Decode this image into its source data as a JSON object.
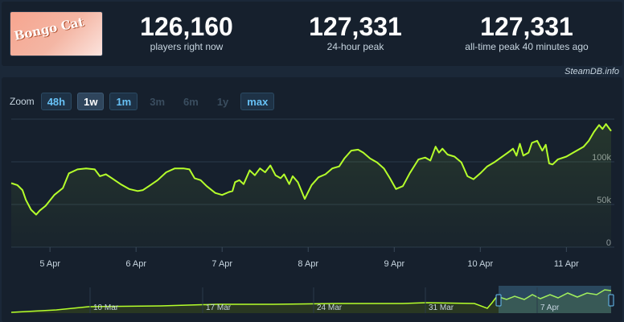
{
  "game": {
    "logo_text": "Bongo Cat"
  },
  "stats": [
    {
      "value": "126,160",
      "label": "players right now"
    },
    {
      "value": "127,331",
      "label": "24-hour peak"
    },
    {
      "value": "127,331",
      "label": "all-time peak 40 minutes ago"
    }
  ],
  "source": "SteamDB.info",
  "zoom": {
    "label": "Zoom",
    "options": [
      {
        "label": "48h",
        "state": "normal"
      },
      {
        "label": "1w",
        "state": "active"
      },
      {
        "label": "1m",
        "state": "normal"
      },
      {
        "label": "3m",
        "state": "disabled"
      },
      {
        "label": "6m",
        "state": "disabled"
      },
      {
        "label": "1y",
        "state": "disabled"
      },
      {
        "label": "max",
        "state": "normal"
      }
    ]
  },
  "colors": {
    "line": "#b5ff2b",
    "accent": "#67c1f5",
    "background": "#1b2838"
  },
  "chart_data": {
    "type": "line",
    "xlabels": [
      "5 Apr",
      "6 Apr",
      "7 Apr",
      "8 Apr",
      "9 Apr",
      "10 Apr",
      "11 Apr"
    ],
    "ylabels": [
      "0",
      "50k",
      "100k"
    ],
    "ylim": [
      0,
      130000
    ],
    "x_range_days": [
      4.55,
      11.52
    ],
    "series": [
      {
        "values": [
          [
            4.55,
            65000
          ],
          [
            4.62,
            63000
          ],
          [
            4.68,
            58000
          ],
          [
            4.72,
            48000
          ],
          [
            4.78,
            38000
          ],
          [
            4.84,
            33000
          ],
          [
            4.88,
            37000
          ],
          [
            4.95,
            42000
          ],
          [
            5.05,
            53000
          ],
          [
            5.15,
            60000
          ],
          [
            5.22,
            75000
          ],
          [
            5.32,
            79000
          ],
          [
            5.42,
            80000
          ],
          [
            5.52,
            79000
          ],
          [
            5.58,
            72000
          ],
          [
            5.65,
            74000
          ],
          [
            5.72,
            70000
          ],
          [
            5.82,
            64000
          ],
          [
            5.92,
            59000
          ],
          [
            6.02,
            57000
          ],
          [
            6.08,
            58000
          ],
          [
            6.15,
            62000
          ],
          [
            6.25,
            68000
          ],
          [
            6.35,
            76000
          ],
          [
            6.45,
            80000
          ],
          [
            6.55,
            80000
          ],
          [
            6.62,
            79000
          ],
          [
            6.68,
            70000
          ],
          [
            6.75,
            68000
          ],
          [
            6.82,
            62000
          ],
          [
            6.92,
            55000
          ],
          [
            7.0,
            53000
          ],
          [
            7.08,
            56000
          ],
          [
            7.12,
            57000
          ],
          [
            7.15,
            66000
          ],
          [
            7.2,
            68000
          ],
          [
            7.25,
            64000
          ],
          [
            7.32,
            78000
          ],
          [
            7.38,
            73000
          ],
          [
            7.44,
            80000
          ],
          [
            7.5,
            76000
          ],
          [
            7.56,
            83000
          ],
          [
            7.62,
            73000
          ],
          [
            7.68,
            70000
          ],
          [
            7.72,
            74000
          ],
          [
            7.78,
            64000
          ],
          [
            7.82,
            72000
          ],
          [
            7.88,
            66000
          ],
          [
            7.96,
            49000
          ],
          [
            8.04,
            63000
          ],
          [
            8.12,
            71000
          ],
          [
            8.2,
            74000
          ],
          [
            8.28,
            80000
          ],
          [
            8.36,
            82000
          ],
          [
            8.42,
            90000
          ],
          [
            8.5,
            98000
          ],
          [
            8.58,
            99000
          ],
          [
            8.64,
            96000
          ],
          [
            8.72,
            90000
          ],
          [
            8.8,
            86000
          ],
          [
            8.88,
            80000
          ],
          [
            8.95,
            70000
          ],
          [
            9.02,
            59000
          ],
          [
            9.1,
            62000
          ],
          [
            9.18,
            75000
          ],
          [
            9.28,
            89000
          ],
          [
            9.36,
            91000
          ],
          [
            9.42,
            88000
          ],
          [
            9.48,
            102000
          ],
          [
            9.52,
            96000
          ],
          [
            9.56,
            100000
          ],
          [
            9.62,
            94000
          ],
          [
            9.7,
            92000
          ],
          [
            9.78,
            86000
          ],
          [
            9.85,
            72000
          ],
          [
            9.92,
            69000
          ],
          [
            10.0,
            75000
          ],
          [
            10.08,
            82000
          ],
          [
            10.16,
            86000
          ],
          [
            10.24,
            91000
          ],
          [
            10.32,
            96000
          ],
          [
            10.38,
            100000
          ],
          [
            10.42,
            93000
          ],
          [
            10.46,
            105000
          ],
          [
            10.5,
            93000
          ],
          [
            10.56,
            96000
          ],
          [
            10.6,
            106000
          ],
          [
            10.66,
            108000
          ],
          [
            10.72,
            98000
          ],
          [
            10.76,
            104000
          ],
          [
            10.8,
            85000
          ],
          [
            10.84,
            84000
          ],
          [
            10.9,
            89000
          ],
          [
            11.0,
            92000
          ],
          [
            11.1,
            97000
          ],
          [
            11.2,
            102000
          ],
          [
            11.26,
            108000
          ],
          [
            11.32,
            117000
          ],
          [
            11.38,
            124000
          ],
          [
            11.42,
            120000
          ],
          [
            11.46,
            125000
          ],
          [
            11.52,
            118000
          ]
        ]
      }
    ],
    "navigator": {
      "xlabels": [
        "10 Mar",
        "17 Mar",
        "24 Mar",
        "31 Mar",
        "7 Apr"
      ]
    }
  }
}
